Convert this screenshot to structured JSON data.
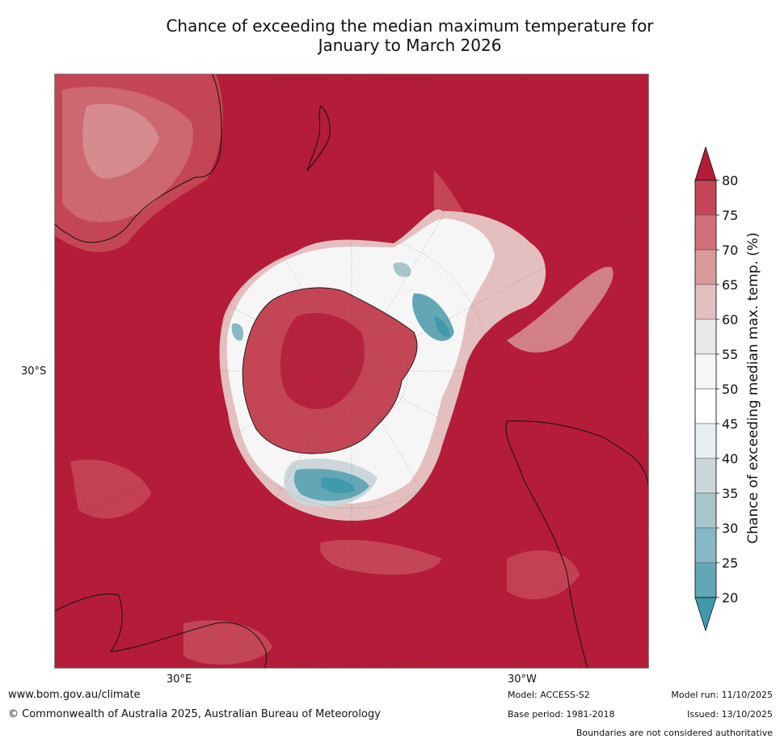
{
  "title_line1": "Chance of exceeding the median maximum temperature for",
  "title_line2": "January to March 2026",
  "coords": {
    "lat_label": "30°S",
    "lon_east": "30°E",
    "lon_west": "30°W"
  },
  "legend": {
    "label": "Chance of exceeding median max. temp. (%)",
    "ticks": [
      "80",
      "75",
      "70",
      "65",
      "60",
      "55",
      "50",
      "45",
      "40",
      "35",
      "30",
      "25",
      "20"
    ],
    "colors": [
      "#b41c39",
      "#c44656",
      "#d07078",
      "#da9a9c",
      "#e4bfc0",
      "#e8e8e8",
      "#f6f6f6",
      "#ffffff",
      "#e7eef2",
      "#cbd7db",
      "#a9c5cc",
      "#86b8c5",
      "#63a7b7",
      "#3f9aac"
    ]
  },
  "footer": {
    "url": "www.bom.gov.au/climate",
    "copyright": "© Commonwealth of Australia 2025, Australian Bureau of Meteorology",
    "model": "Model: ACCESS-S2",
    "base_period": "Base period: 1981-2018",
    "model_run": "Model run: 11/10/2025",
    "issued": "Issued: 13/10/2025",
    "disclaimer": "Boundaries are not considered authoritative"
  }
}
